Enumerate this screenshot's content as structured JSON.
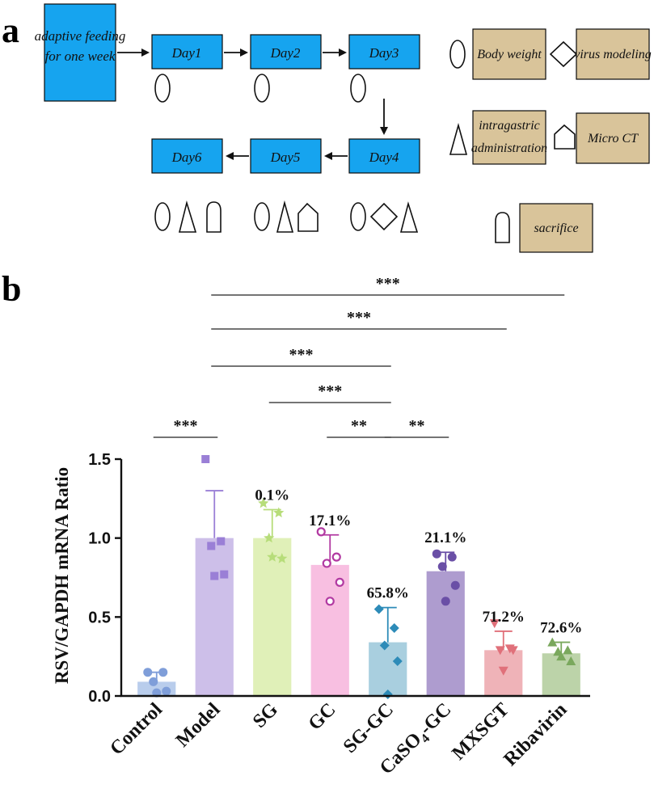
{
  "panel_a": {
    "letter": "a",
    "start_box": {
      "line1": "adaptive feeding",
      "line2": "for one week"
    },
    "days": [
      "Day1",
      "Day2",
      "Day3",
      "Day4",
      "Day5",
      "Day6"
    ],
    "day_markers": {
      "Day1": [
        "circle"
      ],
      "Day2": [
        "circle"
      ],
      "Day3": [
        "circle"
      ],
      "Day4": [
        "circle",
        "diamond",
        "triangle"
      ],
      "Day5": [
        "circle",
        "triangle",
        "pentagon"
      ],
      "Day6": [
        "circle",
        "triangle",
        "arch"
      ]
    },
    "legend": {
      "body_weight": "Body weight",
      "virus_modeling": "virus modeling",
      "intragastric_line1": "intragastric",
      "intragastric_line2": "administration",
      "micro_ct": "Micro CT",
      "sacrifice": "sacrifice"
    }
  },
  "panel_b": {
    "letter": "b"
  },
  "colors": {
    "blue_box": "#16a4ef",
    "tan_box": "#d9c49a"
  },
  "chart_data": {
    "type": "bar",
    "title": "",
    "xlabel": "",
    "ylabel": "RSV/GAPDH mRNA Ratio",
    "ylim": [
      0,
      1.5
    ],
    "yticks": [
      "0.0",
      "0.5",
      "1.0",
      "1.5"
    ],
    "categories": [
      "Control",
      "Model",
      "SG",
      "GC",
      "SG-GC",
      "CaSO4-GC",
      "MXSGT",
      "Ribavirin"
    ],
    "category_labels": [
      {
        "text": "Control"
      },
      {
        "text": "Model"
      },
      {
        "text": "SG"
      },
      {
        "text": "GC"
      },
      {
        "text": "SG-GC"
      },
      {
        "text": "CaSO",
        "sub": "4",
        "rest": "-GC"
      },
      {
        "text": "MXSGT"
      },
      {
        "text": "Ribavirin"
      }
    ],
    "values": [
      0.09,
      1.0,
      1.0,
      0.83,
      0.34,
      0.79,
      0.29,
      0.27
    ],
    "errors": [
      0.06,
      0.3,
      0.18,
      0.19,
      0.22,
      0.12,
      0.12,
      0.07
    ],
    "inhibition_labels": [
      "",
      "",
      "0.1%",
      "17.1%",
      "65.8%",
      "21.1%",
      "71.2%",
      "72.6%"
    ],
    "bar_colors": [
      "#b9cdec",
      "#cdbfe9",
      "#e0f0b8",
      "#f8bfe1",
      "#a9cfdf",
      "#ae9ccf",
      "#efb3b8",
      "#bcd3a9"
    ],
    "point_colors": [
      "#7f9ed9",
      "#9a7fd6",
      "#b7dd7a",
      "#b23aa2",
      "#2d8bb8",
      "#6a4fa6",
      "#e0707a",
      "#7aa85d"
    ],
    "point_markers": [
      "circle",
      "square",
      "star",
      "open-circle",
      "diamond",
      "circle",
      "triangle-down",
      "triangle-up"
    ],
    "points": [
      [
        0.15,
        0.15,
        0.09,
        0.03,
        0.02
      ],
      [
        1.5,
        0.98,
        0.95,
        0.77,
        0.76
      ],
      [
        1.22,
        1.16,
        1.0,
        0.87,
        0.88
      ],
      [
        1.04,
        0.88,
        0.84,
        0.72,
        0.6
      ],
      [
        0.55,
        0.43,
        0.32,
        0.22,
        0.01
      ],
      [
        0.9,
        0.88,
        0.82,
        0.7,
        0.6
      ],
      [
        0.46,
        0.3,
        0.29,
        0.29,
        0.16
      ],
      [
        0.34,
        0.29,
        0.28,
        0.22,
        0.25
      ]
    ],
    "significance": [
      {
        "from": 0,
        "to": 1,
        "label": "***"
      },
      {
        "from": 3,
        "to": 4,
        "label": "**"
      },
      {
        "from": 4,
        "to": 5,
        "label": "**"
      },
      {
        "from": 2,
        "to": 4,
        "label": "***"
      },
      {
        "from": 1,
        "to": 4,
        "label": "***"
      },
      {
        "from": 1,
        "to": 6,
        "label": "***"
      },
      {
        "from": 1,
        "to": 7,
        "label": "***"
      }
    ]
  }
}
